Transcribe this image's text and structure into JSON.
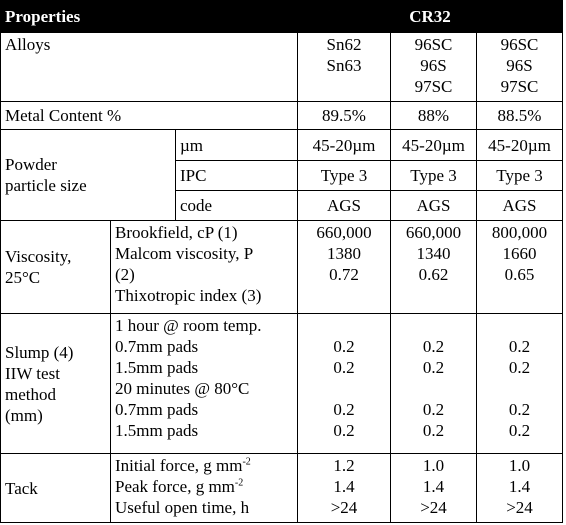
{
  "header": {
    "properties": "Properties",
    "product": "CR32"
  },
  "rows": {
    "alloys": {
      "label": "Alloys",
      "values": [
        [
          "Sn62",
          "Sn63"
        ],
        [
          "96SC",
          "96S",
          "97SC"
        ],
        [
          "96SC",
          "96S",
          "97SC"
        ]
      ]
    },
    "metal_content": {
      "label": "Metal Content %",
      "values": [
        "89.5%",
        "88%",
        "88.5%"
      ]
    },
    "powder": {
      "label": [
        "Powder",
        "particle size"
      ],
      "sub": [
        {
          "label": "µm",
          "values": [
            "45-20µm",
            "45-20µm",
            "45-20µm"
          ]
        },
        {
          "label": "IPC",
          "values": [
            "Type 3",
            "Type 3",
            "Type 3"
          ]
        },
        {
          "label": "code",
          "values": [
            "AGS",
            "AGS",
            "AGS"
          ]
        }
      ]
    },
    "viscosity": {
      "label": [
        "Viscosity,",
        "25°C"
      ],
      "sub_labels": [
        "Brookfield, cP (1)",
        "Malcom viscosity, P",
        "(2)",
        "Thixotropic index (3)"
      ],
      "values": [
        [
          "660,000",
          "1380",
          "0.72"
        ],
        [
          "660,000",
          "1340",
          "0.62"
        ],
        [
          "800,000",
          "1660",
          "0.65"
        ]
      ]
    },
    "slump": {
      "label": [
        "Slump (4)",
        "IIW test",
        "method",
        "(mm)"
      ],
      "sub_labels": [
        "1 hour @ room temp.",
        "0.7mm pads",
        "1.5mm pads",
        "20 minutes @ 80°C",
        "0.7mm pads",
        "1.5mm pads"
      ],
      "values": [
        [
          null,
          "0.2",
          "0.2",
          null,
          "0.2",
          "0.2"
        ],
        [
          null,
          "0.2",
          "0.2",
          null,
          "0.2",
          "0.2"
        ],
        [
          null,
          "0.2",
          "0.2",
          null,
          "0.2",
          "0.2"
        ]
      ]
    },
    "tack": {
      "label": "Tack",
      "sub_labels": [
        {
          "text": "Initial force, g mm",
          "sup": "-2"
        },
        {
          "text": "Peak force, g mm",
          "sup": "-2"
        },
        "Useful open time, h"
      ],
      "values": [
        [
          "1.2",
          "1.4",
          ">24"
        ],
        [
          "1.0",
          "1.4",
          ">24"
        ],
        [
          "1.0",
          "1.4",
          ">24"
        ]
      ]
    }
  }
}
